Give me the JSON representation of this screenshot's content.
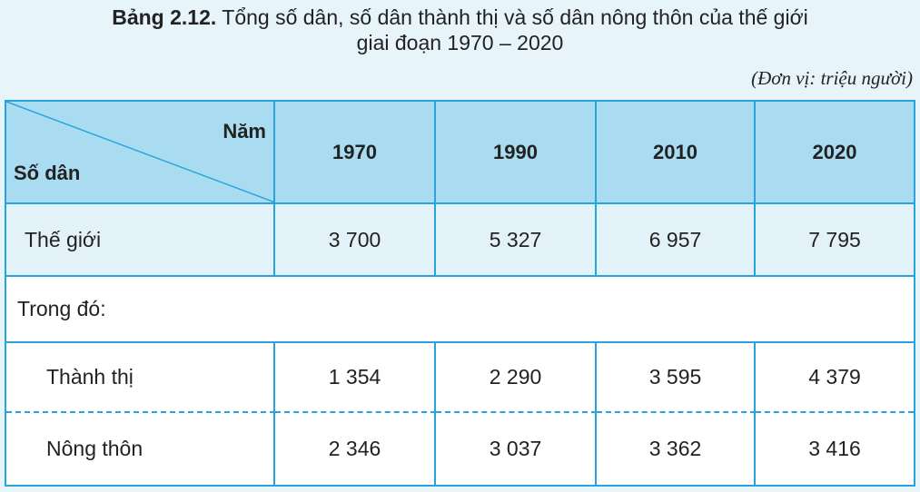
{
  "header": {
    "label": "Bảng 2.12.",
    "title_line1": "Tổng số dân, số dân thành thị và số dân nông thôn của thế giới",
    "title_line2": "giai đoạn 1970 – 2020",
    "unit": "(Đơn vị: triệu người)"
  },
  "table": {
    "corner_top": "Năm",
    "corner_bottom": "Số dân",
    "columns": [
      "1970",
      "1990",
      "2010",
      "2020"
    ],
    "rows": [
      [
        "Thế giới",
        "3 700",
        "5 327",
        "6 957",
        "7 795"
      ],
      [
        "Trong đó:"
      ],
      [
        "Thành thị",
        "1 354",
        "2 290",
        "3 595",
        "4 379"
      ],
      [
        "Nông thôn",
        "2 346",
        "3 037",
        "3 362",
        "3 416"
      ]
    ]
  }
}
